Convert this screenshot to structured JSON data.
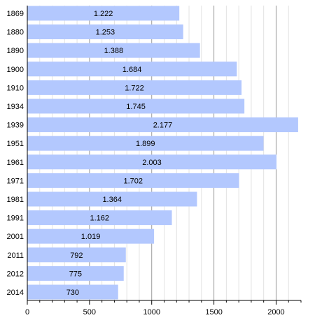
{
  "chart_data": {
    "type": "bar",
    "orientation": "horizontal",
    "categories": [
      "1869",
      "1880",
      "1890",
      "1900",
      "1910",
      "1934",
      "1939",
      "1951",
      "1961",
      "1971",
      "1981",
      "1991",
      "2001",
      "2011",
      "2012",
      "2014"
    ],
    "values": [
      1222,
      1253,
      1388,
      1684,
      1722,
      1745,
      2177,
      1899,
      2003,
      1702,
      1364,
      1162,
      1019,
      792,
      775,
      730
    ],
    "value_labels": [
      "1.222",
      "1.253",
      "1.388",
      "1.684",
      "1.722",
      "1.745",
      "2.177",
      "1.899",
      "2.003",
      "1.702",
      "1.364",
      "1.162",
      "1.019",
      "792",
      "775",
      "730"
    ],
    "xlim": [
      0,
      2200
    ],
    "x_ticks": [
      0,
      500,
      1000,
      1500,
      2000
    ],
    "x_tick_labels": [
      "0",
      "500",
      "1000",
      "1500",
      "2000"
    ],
    "x_minor_step": 100,
    "grid": true,
    "bar_color": "#b3c8fe"
  }
}
